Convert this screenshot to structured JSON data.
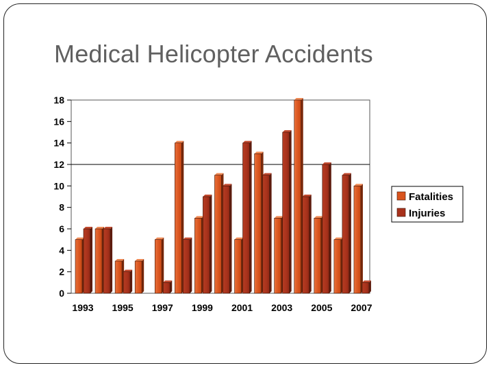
{
  "slide": {
    "title": "Medical Helicopter Accidents"
  },
  "chart_data": {
    "type": "bar",
    "title": "",
    "xlabel": "",
    "ylabel": "",
    "categories": [
      "1993",
      "1994",
      "1995",
      "1996",
      "1997",
      "1998",
      "1999",
      "2000",
      "2001",
      "2002",
      "2003",
      "2004",
      "2005",
      "2006",
      "2007"
    ],
    "x_tick_labels": [
      "1993",
      "1995",
      "1997",
      "1999",
      "2001",
      "2003",
      "2005",
      "2007"
    ],
    "y_tick_labels": [
      "0",
      "2",
      "4",
      "6",
      "8",
      "10",
      "12",
      "14",
      "16",
      "18"
    ],
    "ylim": [
      0,
      18
    ],
    "reference_line": 12,
    "series": [
      {
        "name": "Fatalities",
        "color": "#d9541e",
        "values": [
          5,
          6,
          3,
          3,
          5,
          14,
          7,
          11,
          5,
          13,
          7,
          18,
          7,
          5,
          10
        ]
      },
      {
        "name": "Injuries",
        "color": "#a8321c",
        "values": [
          6,
          6,
          2,
          0,
          1,
          5,
          9,
          10,
          14,
          11,
          15,
          9,
          12,
          11,
          1
        ]
      }
    ],
    "legend_position": "right",
    "grid": false,
    "style": "3d-bars"
  }
}
